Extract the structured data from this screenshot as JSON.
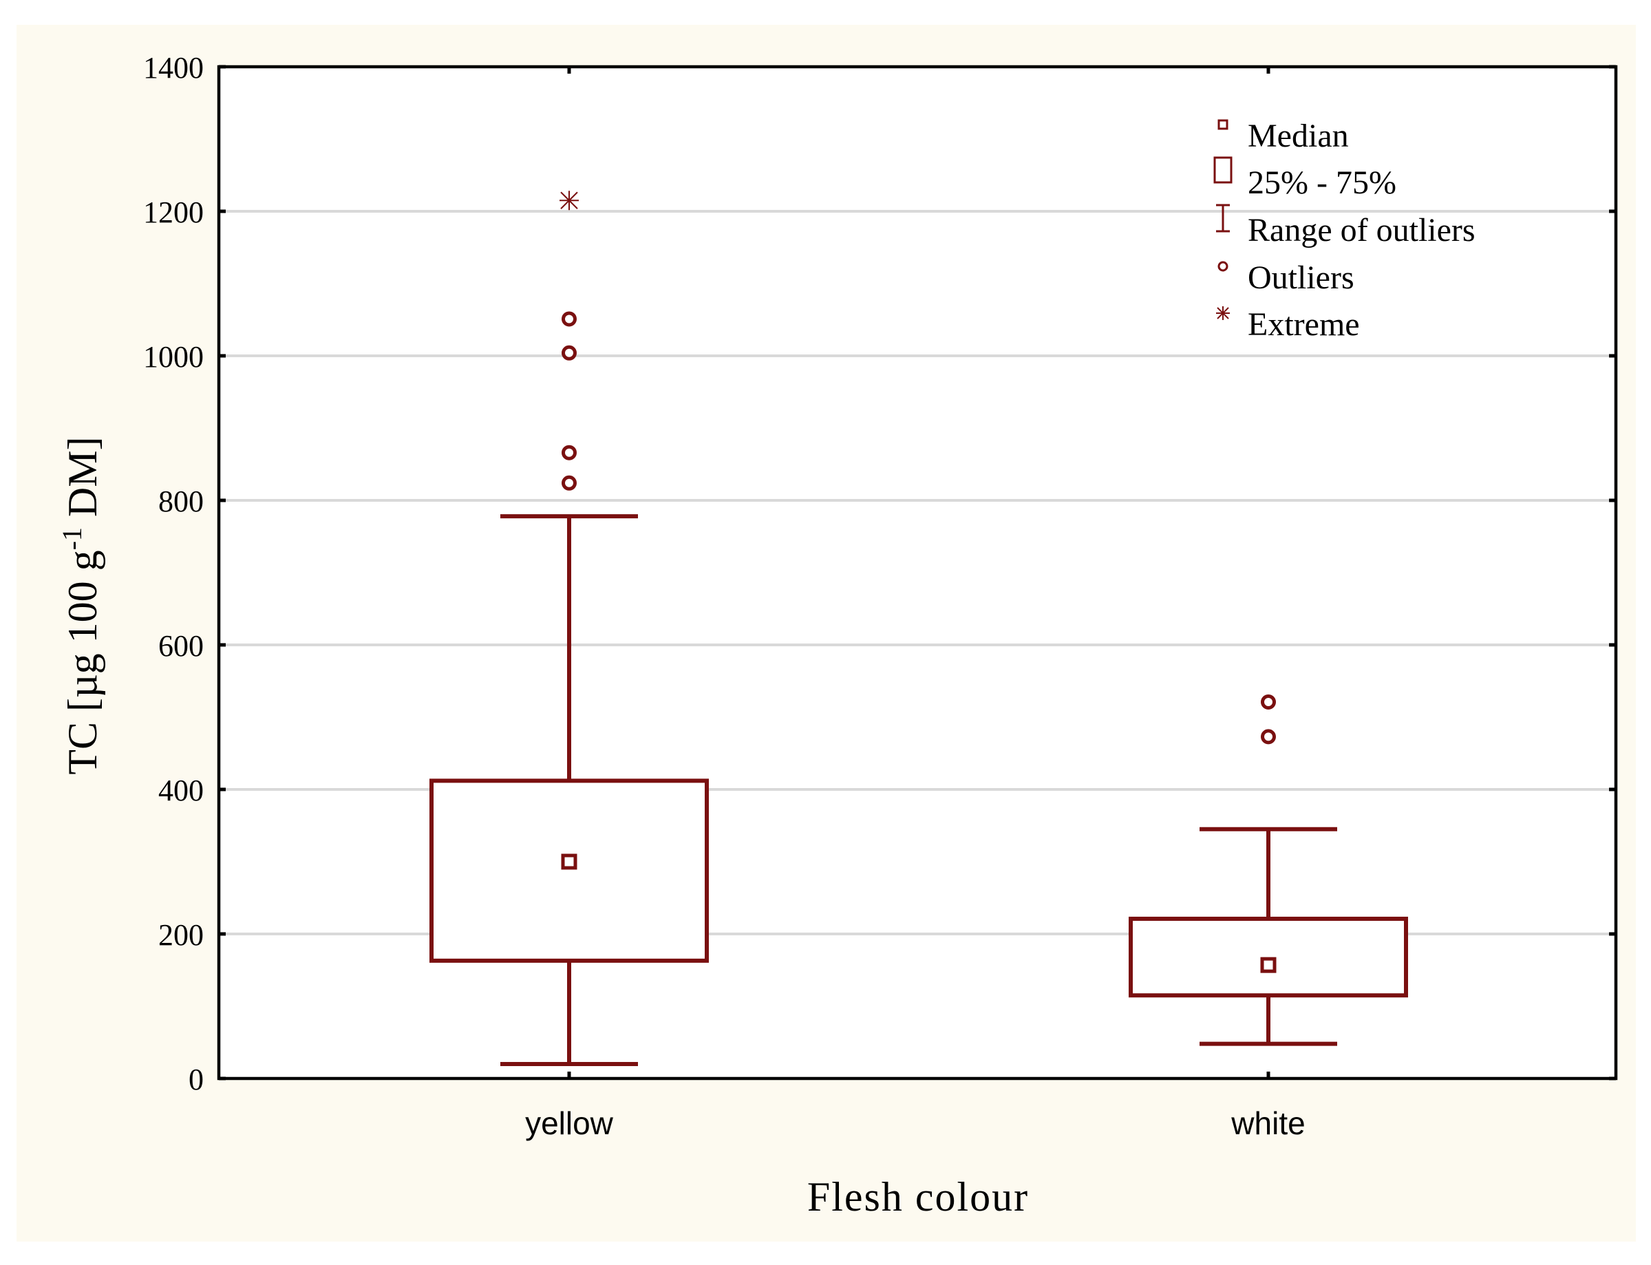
{
  "chart_data": {
    "type": "box",
    "title": "",
    "xlabel": "Flesh colour",
    "ylabel_main": "TC [µg 100 g",
    "ylabel_sup": "-1",
    "ylabel_tail": " DM]",
    "ylim": [
      0,
      1400
    ],
    "yticks": [
      "0",
      "200",
      "400",
      "600",
      "800",
      "1000",
      "1200",
      "1400"
    ],
    "grid": true,
    "categories": [
      "yellow",
      "white"
    ],
    "boxes": [
      {
        "category": "yellow",
        "median": 300,
        "q1": 163,
        "q3": 412,
        "whisker_low": 20,
        "whisker_high": 778,
        "outliers": [
          1051,
          1004,
          866,
          824
        ],
        "extremes": [
          1215
        ]
      },
      {
        "category": "white",
        "median": 157,
        "q1": 115,
        "q3": 221,
        "whisker_low": 48,
        "whisker_high": 345,
        "outliers": [
          521,
          473
        ],
        "extremes": []
      }
    ],
    "legend": {
      "position": "top-right",
      "items": [
        {
          "symbol": "median-square",
          "label": "Median"
        },
        {
          "symbol": "box",
          "label": "25% - 75%"
        },
        {
          "symbol": "whisker",
          "label": "Range of outliers"
        },
        {
          "symbol": "outlier-circle",
          "label": "Outliers"
        },
        {
          "symbol": "extreme-star",
          "label": "Extreme"
        }
      ]
    },
    "colors": {
      "series": "#7a1010",
      "background": "#fdfaf0",
      "plot_background": "#ffffff",
      "grid": "#d9d9d9",
      "axis": "#000000"
    }
  }
}
